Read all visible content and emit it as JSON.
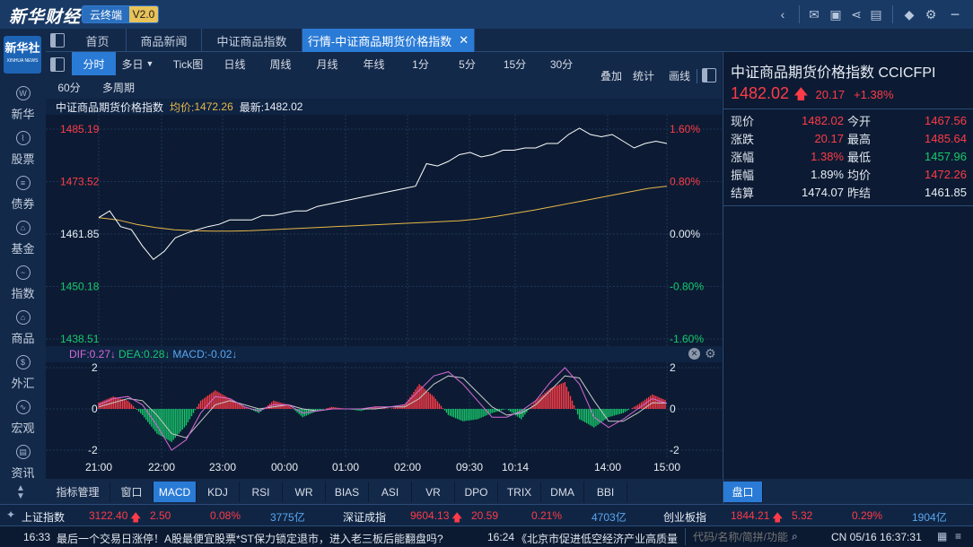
{
  "app": {
    "logo": "新华财经",
    "product": "云终端",
    "version": "V2.0"
  },
  "sidebar": {
    "brand": "新华社",
    "brand_sub": "XINHUA NEWS",
    "items": [
      {
        "label": "新华",
        "glyph": "W"
      },
      {
        "label": "股票",
        "glyph": "⌇"
      },
      {
        "label": "债券",
        "glyph": "≡"
      },
      {
        "label": "基金",
        "glyph": "⌂"
      },
      {
        "label": "指数",
        "glyph": "~"
      },
      {
        "label": "商品",
        "glyph": "⌂"
      },
      {
        "label": "外汇",
        "glyph": "$"
      },
      {
        "label": "宏观",
        "glyph": "∿"
      },
      {
        "label": "资讯",
        "glyph": "▤"
      }
    ]
  },
  "tabs": [
    {
      "label": "首页"
    },
    {
      "label": "商品新闻"
    },
    {
      "label": "中证商品指数"
    },
    {
      "label": "行情-中证商品期货价格指数"
    }
  ],
  "periods": [
    "分时",
    "多日",
    "Tick图",
    "日线",
    "周线",
    "月线",
    "年线",
    "1分",
    "5分",
    "15分",
    "30分",
    "60分",
    "多周期"
  ],
  "toolbar_right": [
    "叠加",
    "统计",
    "画线"
  ],
  "info": {
    "name": "中证商品期货价格指数",
    "avg_label": "均价:",
    "avg_value": "1472.26",
    "last_label": "最新:",
    "last_value": "1482.02"
  },
  "macd": {
    "dif": "DIF:0.27↓",
    "dea": "DEA:0.28↓",
    "macd": "MACD:-0.02↓"
  },
  "chart_data": [
    {
      "type": "line",
      "title": "中证商品期货价格指数 分时",
      "y_left_ticks": [
        "1485.19",
        "1473.52",
        "1461.85",
        "1450.18",
        "1438.51"
      ],
      "y_right_ticks": [
        "1.60%",
        "0.80%",
        "0.00%",
        "-0.80%",
        "-1.60%"
      ],
      "ylim": [
        1438.51,
        1485.19
      ],
      "prev_close": 1461.85,
      "x_ticks": [
        "21:00",
        "22:00",
        "23:00",
        "00:00",
        "01:00",
        "02:00",
        "09:30",
        "10:14",
        "14:00",
        "15:00"
      ],
      "series": [
        {
          "name": "价格",
          "color": "#ffffff",
          "values": [
            1465.5,
            1467.0,
            1463.5,
            1462.8,
            1459.2,
            1456.2,
            1458.0,
            1461.0,
            1462.0,
            1462.8,
            1463.5,
            1464.0,
            1465.0,
            1465.0,
            1465.0,
            1466.0,
            1466.0,
            1466.5,
            1467.0,
            1467.0,
            1468.0,
            1468.5,
            1469.0,
            1469.5,
            1470.0,
            1470.5,
            1471.0,
            1471.5,
            1472.0,
            1472.5,
            1477.5,
            1477.0,
            1478.0,
            1479.5,
            1480.0,
            1479.0,
            1479.5,
            1480.5,
            1480.5,
            1481.0,
            1481.0,
            1482.0,
            1482.0,
            1484.0,
            1485.4,
            1484.0,
            1483.5,
            1484.0,
            1482.5,
            1481.0,
            1482.0,
            1482.5,
            1482.0
          ]
        },
        {
          "name": "均价",
          "color": "#e8b84a",
          "values": [
            1465.5,
            1465.0,
            1464.0,
            1463.3,
            1462.8,
            1462.6,
            1462.5,
            1462.5,
            1462.6,
            1462.8,
            1463.0,
            1463.2,
            1463.4,
            1463.6,
            1463.8,
            1464.0,
            1464.2,
            1464.4,
            1464.6,
            1464.8,
            1465.2,
            1465.8,
            1466.5,
            1467.2,
            1468.0,
            1468.8,
            1469.6,
            1470.4,
            1471.2,
            1472.0,
            1472.5
          ]
        }
      ]
    },
    {
      "type": "bar",
      "title": "MACD",
      "y_ticks": [
        "2",
        "0",
        "-2"
      ],
      "ylim": [
        -2,
        2
      ],
      "x_ticks": [
        "21:00",
        "22:00",
        "23:00",
        "00:00",
        "01:00",
        "02:00",
        "09:30",
        "10:14",
        "14:00",
        "15:00"
      ],
      "series": [
        {
          "name": "MACD",
          "values": [
            0.3,
            0.6,
            0.4,
            -0.3,
            -1.2,
            -1.6,
            -0.8,
            0.4,
            0.9,
            0.5,
            0.1,
            -0.2,
            0.4,
            0.2,
            -0.4,
            -0.1,
            0.1,
            0.0,
            -0.1,
            0.1,
            0.0,
            0.2,
            1.2,
            0.6,
            -0.3,
            -0.6,
            -0.5,
            -0.2,
            0.0,
            -0.5,
            0.4,
            1.0,
            1.3,
            -0.5,
            -0.9,
            -0.4,
            -0.2,
            0.2,
            0.7,
            0.4
          ]
        },
        {
          "name": "DIF",
          "values": [
            0.2,
            0.5,
            0.6,
            0.2,
            -0.8,
            -2.0,
            -1.5,
            -0.2,
            0.6,
            0.5,
            0.1,
            -0.1,
            0.2,
            0.2,
            -0.2,
            -0.1,
            0.0,
            0.0,
            0.0,
            0.1,
            0.1,
            0.2,
            0.9,
            1.6,
            1.8,
            1.2,
            0.4,
            -0.4,
            -0.4,
            -0.1,
            0.4,
            1.3,
            2.0,
            1.2,
            -0.4,
            -0.9,
            -0.5,
            0.0,
            0.5,
            0.27
          ]
        },
        {
          "name": "DEA",
          "values": [
            0.1,
            0.3,
            0.5,
            0.4,
            -0.3,
            -1.2,
            -1.4,
            -0.6,
            0.2,
            0.4,
            0.2,
            0.0,
            0.1,
            0.2,
            0.0,
            -0.1,
            0.0,
            0.0,
            0.0,
            0.0,
            0.1,
            0.1,
            0.5,
            1.2,
            1.6,
            1.5,
            0.8,
            0.1,
            -0.3,
            -0.2,
            0.2,
            0.9,
            1.6,
            1.5,
            0.4,
            -0.6,
            -0.6,
            -0.2,
            0.3,
            0.28
          ]
        }
      ]
    }
  ],
  "quote": {
    "title": "中证商品期货价格指数 CCICFPI",
    "price": "1482.02",
    "change": "20.17",
    "change_pct": "+1.38%",
    "rows": [
      {
        "l1": "现价",
        "v1": "1482.02",
        "l2": "今开",
        "v2": "1467.56"
      },
      {
        "l1": "涨跌",
        "v1": "20.17",
        "l2": "最高",
        "v2": "1485.64"
      },
      {
        "l1": "涨幅",
        "v1": "1.38%",
        "l2": "最低",
        "v2": "1457.96"
      },
      {
        "l1": "振幅",
        "v1": "1.89%",
        "l2": "均价",
        "v2": "1472.26"
      },
      {
        "l1": "结算",
        "v1": "1474.07",
        "l2": "昨结",
        "v2": "1461.85"
      }
    ],
    "colors": {
      "v1": [
        "up",
        "up",
        "up",
        "white",
        "white"
      ],
      "v2": [
        "up",
        "up",
        "down",
        "up",
        "white"
      ]
    }
  },
  "indicators": [
    "指标管理",
    "窗口",
    "MACD",
    "KDJ",
    "RSI",
    "WR",
    "BIAS",
    "ASI",
    "VR",
    "DPO",
    "TRIX",
    "DMA",
    "BBI"
  ],
  "right_tab": "盘口",
  "indexes": [
    {
      "name": "上证指数",
      "value": "3122.40",
      "change": "2.50",
      "pct": "0.08%",
      "amount": "3775亿"
    },
    {
      "name": "深证成指",
      "value": "9604.13",
      "change": "20.59",
      "pct": "0.21%",
      "amount": "4703亿"
    },
    {
      "name": "创业板指",
      "value": "1844.21",
      "change": "5.32",
      "pct": "0.29%",
      "amount": "1904亿"
    }
  ],
  "news": [
    {
      "time": "16:33",
      "text": "最后一个交易日涨停！A股最便宜股票*ST保力锁定退市，进入老三板后能翻盘吗?"
    },
    {
      "time": "16:24",
      "text": "《北京市促进低空经济产业高质量"
    }
  ],
  "search": {
    "placeholder": "代码/名称/简拼/功能"
  },
  "status": {
    "clock": "CN 05/16 16:37:31"
  },
  "colors": {
    "up": "#ff3b47",
    "down": "#17c86c",
    "accent": "#2a7bd6",
    "avg": "#e8b84a"
  }
}
